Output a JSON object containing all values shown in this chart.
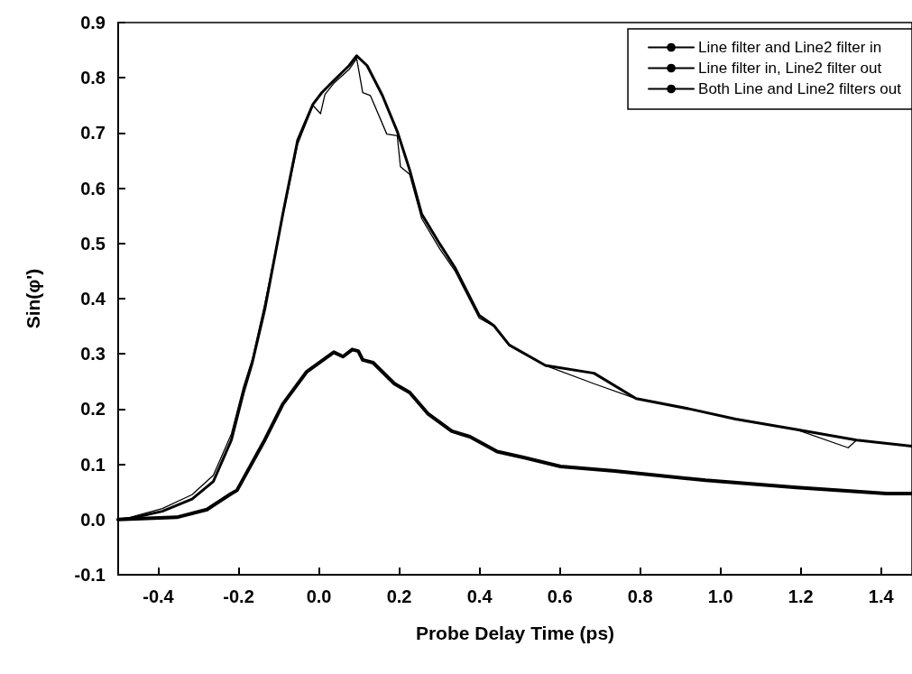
{
  "chart_data": {
    "type": "line",
    "xlabel": "Probe Delay Time (ps)",
    "ylabel": "Sin(φ')",
    "xlim": [
      -0.5,
      1.477
    ],
    "ylim": [
      -0.1,
      0.9
    ],
    "xticks": [
      -0.4,
      -0.2,
      {
        "value": 0,
        "label": "0.0"
      },
      0.2,
      0.4,
      0.6,
      0.8,
      {
        "value": 1,
        "label": "1.0"
      },
      1.2,
      1.4
    ],
    "yticks": [
      -0.1,
      {
        "value": 0,
        "label": "0.0"
      },
      0.1,
      0.2,
      0.3,
      0.4,
      0.5,
      0.6,
      0.7,
      0.8,
      0.9
    ],
    "grid": false,
    "legend": "top right",
    "marker": "none",
    "line_style": "solid",
    "series": [
      {
        "name": "Line filter and Line2 filter in",
        "color": "#000000",
        "x": [
          -0.5,
          -0.354,
          -0.279,
          -0.218,
          -0.204,
          -0.135,
          -0.09,
          -0.03,
          0.037,
          0.06,
          0.083,
          0.098,
          0.109,
          0.135,
          0.188,
          0.226,
          0.271,
          0.331,
          0.376,
          0.444,
          0.512,
          0.602,
          0.737,
          0.963,
          1.189,
          1.414,
          1.477
        ],
        "values": [
          0,
          0.004,
          0.018,
          0.047,
          0.053,
          0.144,
          0.209,
          0.268,
          0.303,
          0.295,
          0.308,
          0.305,
          0.289,
          0.284,
          0.246,
          0.23,
          0.192,
          0.16,
          0.15,
          0.123,
          0.112,
          0.096,
          0.088,
          0.071,
          0.058,
          0.047,
          0.047
        ]
      },
      {
        "name": "Line filter in, Line2 filter out",
        "color": "#000000",
        "x": [
          -0.5,
          -0.47,
          -0.39,
          -0.316,
          -0.263,
          -0.218,
          -0.188,
          -0.166,
          -0.135,
          -0.09,
          -0.053,
          -0.015,
          0.007,
          0.037,
          0.075,
          0.094,
          0.12,
          0.158,
          0.195,
          0.226,
          0.256,
          0.301,
          0.339,
          0.399,
          0.436,
          0.474,
          0.564,
          0.685,
          0.79,
          0.925,
          1.038,
          1.189,
          1.339,
          1.477
        ],
        "values": [
          0,
          0.002,
          0.015,
          0.037,
          0.069,
          0.144,
          0.23,
          0.284,
          0.38,
          0.553,
          0.687,
          0.752,
          0.773,
          0.795,
          0.822,
          0.84,
          0.822,
          0.768,
          0.703,
          0.633,
          0.553,
          0.499,
          0.456,
          0.37,
          0.351,
          0.316,
          0.279,
          0.265,
          0.219,
          0.2,
          0.182,
          0.163,
          0.144,
          0.133
        ]
      },
      {
        "name": "Both Line and Line2 filters out",
        "color": "#000000",
        "x": [
          -0.5,
          -0.47,
          -0.39,
          -0.316,
          -0.263,
          -0.218,
          -0.188,
          -0.166,
          -0.135,
          -0.09,
          -0.053,
          -0.015,
          0.004,
          0.015,
          0.037,
          0.075,
          0.094,
          0.109,
          0.128,
          0.169,
          0.195,
          0.203,
          0.226,
          0.256,
          0.301,
          0.339,
          0.399,
          0.436,
          0.474,
          0.564,
          0.685,
          0.79,
          0.925,
          1.038,
          1.189,
          1.318,
          1.339,
          1.477
        ],
        "values": [
          0,
          0.004,
          0.02,
          0.045,
          0.08,
          0.155,
          0.24,
          0.29,
          0.39,
          0.55,
          0.68,
          0.75,
          0.735,
          0.77,
          0.79,
          0.815,
          0.835,
          0.773,
          0.768,
          0.698,
          0.695,
          0.639,
          0.625,
          0.545,
          0.49,
          0.45,
          0.365,
          0.35,
          0.316,
          0.279,
          0.246,
          0.219,
          0.2,
          0.182,
          0.163,
          0.13,
          0.144,
          0.133
        ]
      }
    ]
  }
}
